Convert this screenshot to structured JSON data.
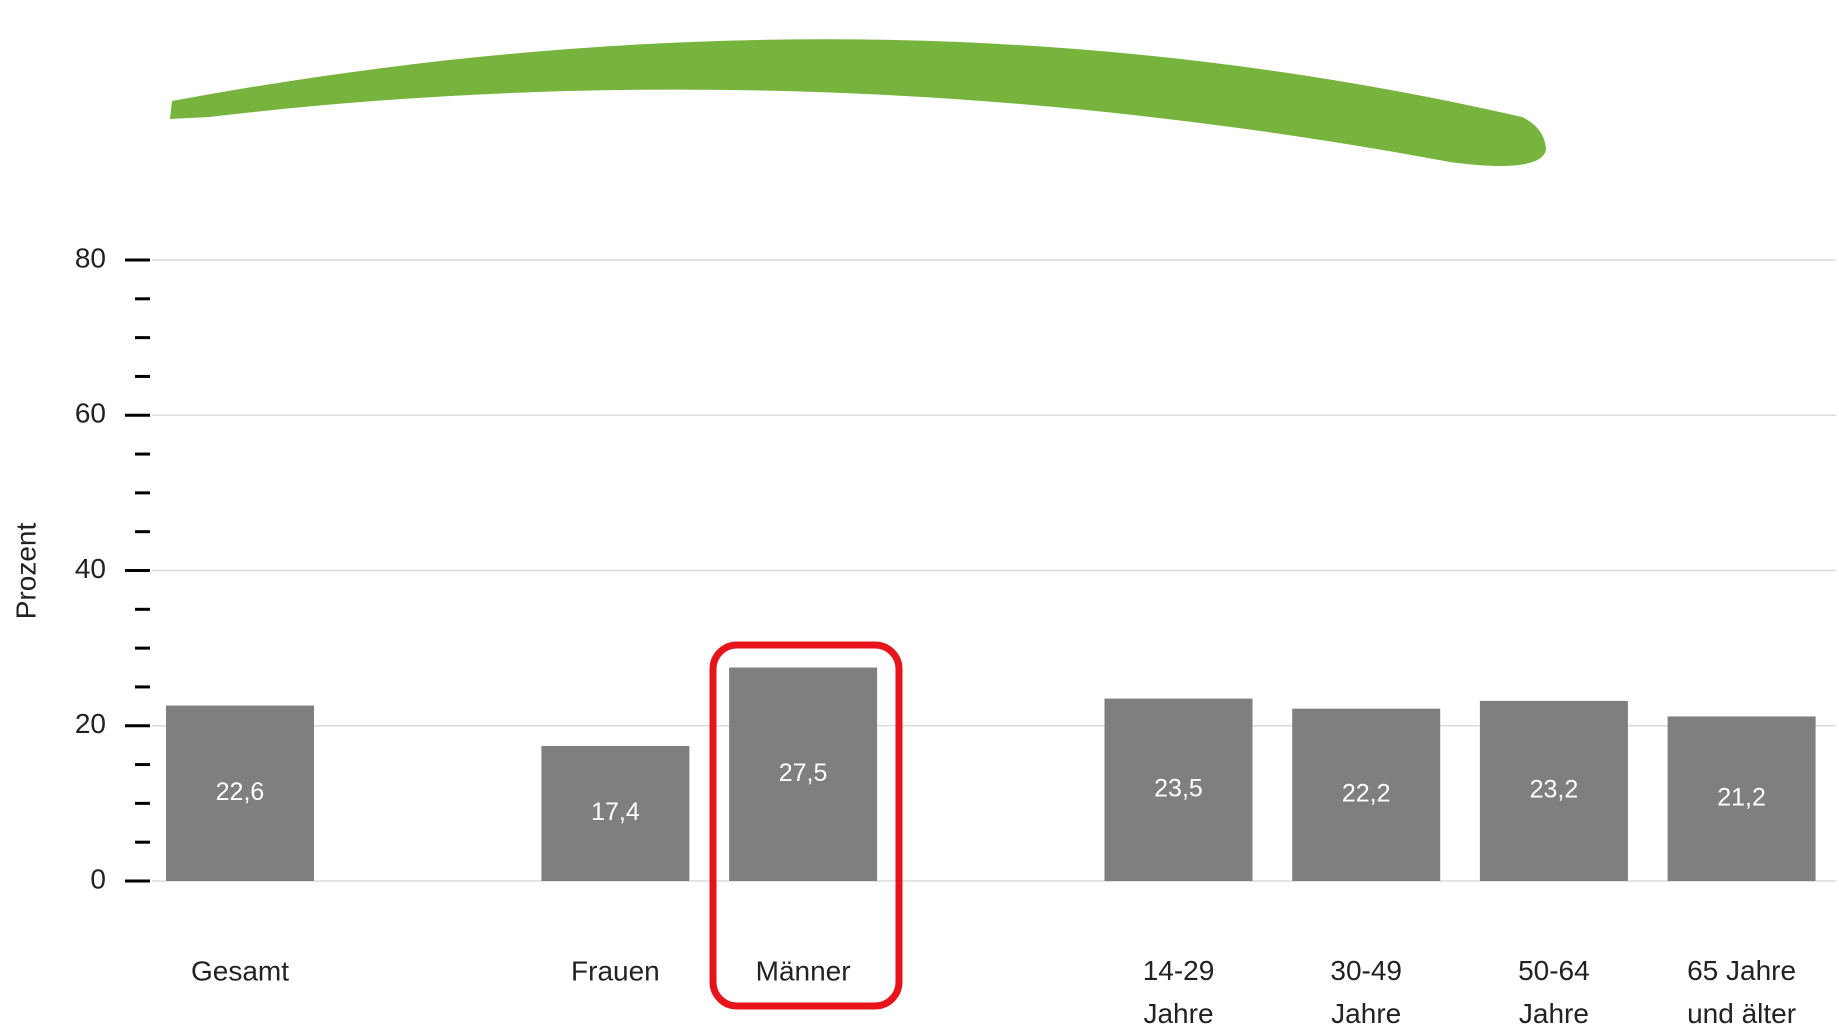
{
  "chart_data": {
    "type": "bar",
    "y_label": "Prozent",
    "categories": [
      "Gesamt",
      null,
      "Frauen",
      "Männer",
      null,
      "14-29\nJahre",
      "30-49\nJahre",
      "50-64\nJahre",
      "65 Jahre\nund älter"
    ],
    "values": [
      22.6,
      null,
      17.4,
      27.5,
      null,
      23.5,
      22.2,
      23.2,
      21.2
    ],
    "value_labels": [
      "22,6",
      null,
      "17,4",
      "27,5",
      null,
      "23,5",
      "22,2",
      "23,2",
      "21,2"
    ],
    "color": "#7f7f7f",
    "ylim": [
      0,
      80
    ],
    "yticks": [
      0,
      20,
      40,
      60,
      80
    ],
    "yminorticks": [
      5,
      10,
      15,
      25,
      30,
      35,
      45,
      50,
      55,
      65,
      70,
      75
    ],
    "grid": true
  }
}
